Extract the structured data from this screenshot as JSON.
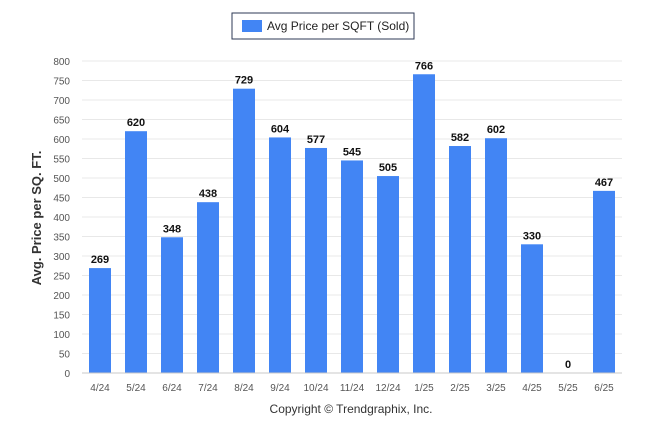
{
  "chart_data": {
    "type": "bar",
    "categories": [
      "4/24",
      "5/24",
      "6/24",
      "7/24",
      "8/24",
      "9/24",
      "10/24",
      "11/24",
      "12/24",
      "1/25",
      "2/25",
      "3/25",
      "4/25",
      "5/25",
      "6/25"
    ],
    "series": [
      {
        "name": "Avg Price per SQFT (Sold)",
        "values": [
          269,
          620,
          348,
          438,
          729,
          604,
          577,
          545,
          505,
          766,
          582,
          602,
          330,
          0,
          467
        ]
      }
    ],
    "ylabel": "Avg. Price per SQ. FT.",
    "xlabel": "",
    "ylim": [
      0,
      800
    ],
    "yticks": [
      0,
      50,
      100,
      150,
      200,
      250,
      300,
      350,
      400,
      450,
      500,
      550,
      600,
      650,
      700,
      750,
      800
    ],
    "grid": true,
    "legend_position": "top-center",
    "bar_color": "#4285f4",
    "footer": "Copyright © Trendgraphix, Inc."
  }
}
